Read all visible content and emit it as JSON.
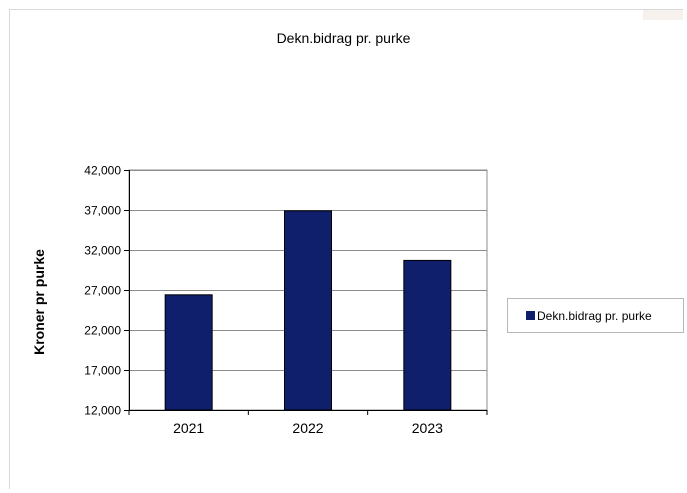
{
  "chart_data": {
    "type": "bar",
    "title": "Dekn.bidrag pr. purke",
    "xlabel": "",
    "ylabel": "Kroner pr purke",
    "categories": [
      "2021",
      "2022",
      "2023"
    ],
    "series": [
      {
        "name": "Dekn.bidrag pr. purke",
        "values": [
          26400,
          36900,
          30700
        ]
      }
    ],
    "ylim": [
      12000,
      42000
    ],
    "yticks": [
      12000,
      17000,
      22000,
      27000,
      32000,
      37000,
      42000
    ],
    "ytick_labels": [
      "12,000",
      "17,000",
      "22,000",
      "27,000",
      "32,000",
      "37,000",
      "42,000"
    ],
    "grid": true,
    "legend_position": "right",
    "bar_color": "#0f1f6b",
    "grid_color": "#8c8c8c"
  }
}
